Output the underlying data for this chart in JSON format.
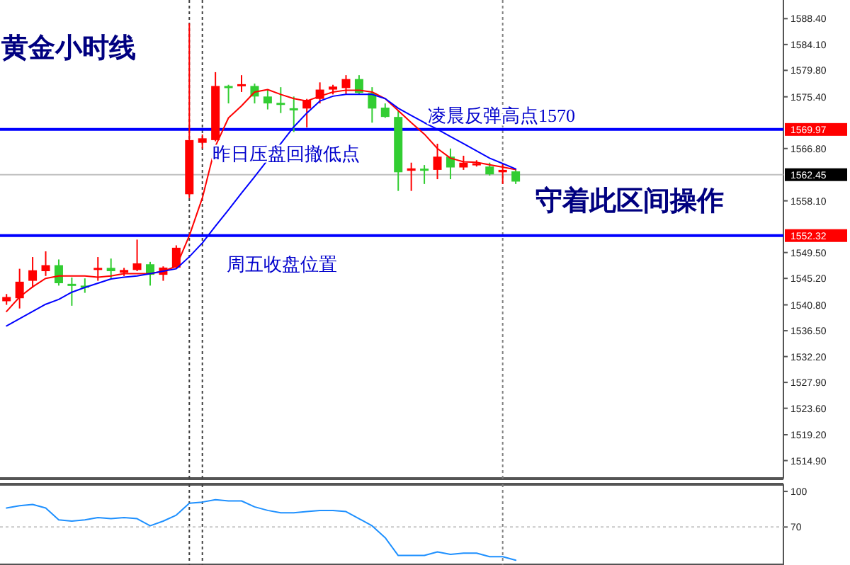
{
  "chart_data": [
    {
      "type": "candlestick",
      "title": "黄金小时线",
      "annotations": [
        "凌晨反弹高点1570",
        "昨日压盘回撤低点",
        "守着此区间操作",
        "周五收盘位置"
      ],
      "categories": [
        null,
        null,
        null,
        null,
        null,
        null,
        null,
        null,
        null,
        null,
        null,
        null,
        null,
        null,
        null,
        null,
        null,
        null,
        null,
        null,
        null,
        null,
        null,
        null,
        null,
        null,
        null,
        null,
        null,
        null,
        null,
        null,
        null,
        null,
        null,
        null,
        null,
        null,
        null,
        null,
        null,
        null,
        null,
        null,
        null,
        null,
        null,
        null,
        null,
        null,
        null,
        null,
        null,
        null,
        null,
        null,
        null,
        null,
        null,
        null
      ],
      "ohlc": [
        [
          1541.4,
          1542.6,
          1540.8,
          1542.1
        ],
        [
          1541.9,
          1546.8,
          1540.2,
          1544.65
        ],
        [
          1544.8,
          1548.75,
          1543.65,
          1546.55
        ],
        [
          1546.4,
          1549.7,
          1545.6,
          1547.4
        ],
        [
          1547.4,
          1548.35,
          1544.0,
          1544.4
        ],
        [
          1544.3,
          1545.35,
          1540.65,
          1544.2
        ],
        [
          1544.0,
          1545.2,
          1542.8,
          1543.9
        ],
        [
          1546.6,
          1548.75,
          1544.8,
          1546.95
        ],
        [
          1546.95,
          1548.5,
          1545.2,
          1546.4
        ],
        [
          1546.15,
          1546.95,
          1545.6,
          1546.6
        ],
        [
          1546.6,
          1551.65,
          1546.4,
          1547.7
        ],
        [
          1547.55,
          1547.95,
          1544.0,
          1545.8
        ],
        [
          1545.8,
          1547.2,
          1544.8,
          1547.0
        ],
        [
          1547.0,
          1550.7,
          1546.8,
          1550.3
        ],
        [
          1559.2,
          1587.6,
          1558.55,
          1568.2
        ],
        [
          1567.75,
          1569.15,
          1566.8,
          1568.5
        ],
        [
          1568.2,
          1579.5,
          1568.0,
          1577.2
        ],
        [
          1577.2,
          1577.4,
          1574.3,
          1577.0
        ],
        [
          1577.2,
          1579.0,
          1576.2,
          1577.5
        ],
        [
          1577.2,
          1577.6,
          1574.3,
          1575.45
        ],
        [
          1575.45,
          1576.6,
          1573.3,
          1574.3
        ],
        [
          1574.4,
          1577.0,
          1572.7,
          1574.1
        ],
        [
          1573.5,
          1575.45,
          1569.55,
          1573.3
        ],
        [
          1573.45,
          1575.05,
          1570.3,
          1574.9
        ],
        [
          1575.05,
          1577.8,
          1574.3,
          1576.6
        ],
        [
          1576.6,
          1577.4,
          1575.8,
          1577.1
        ],
        [
          1576.85,
          1579.0,
          1575.8,
          1578.35
        ],
        [
          1578.35,
          1579.0,
          1575.8,
          1576.05
        ],
        [
          1576.05,
          1577.0,
          1571.1,
          1573.45
        ],
        [
          1573.6,
          1574.3,
          1571.9,
          1572.05
        ],
        [
          1572.05,
          1573.1,
          1559.75,
          1562.85
        ],
        [
          1563.1,
          1564.45,
          1559.75,
          1563.5
        ],
        [
          1563.45,
          1564.05,
          1560.9,
          1563.35
        ],
        [
          1563.25,
          1567.6,
          1561.7,
          1565.45
        ],
        [
          1565.45,
          1566.8,
          1561.7,
          1563.65
        ],
        [
          1563.65,
          1565.6,
          1563.25,
          1564.45
        ],
        [
          1564.2,
          1564.85,
          1563.8,
          1564.35
        ],
        [
          1563.8,
          1564.45,
          1562.3,
          1562.5
        ],
        [
          1562.85,
          1564.2,
          1560.9,
          1563.25
        ],
        [
          1563.0,
          1563.25,
          1560.9,
          1561.3
        ],
        null,
        null,
        null,
        null,
        null,
        null,
        null,
        null,
        null,
        null,
        null,
        null,
        null,
        null,
        null,
        null,
        null,
        null,
        null,
        null
      ],
      "colors": [
        "#ff0000",
        "#ff0000",
        "#ff0000",
        "#ff0000",
        "#32cd32",
        "#32cd32",
        "#32cd32",
        "#ff0000",
        "#32cd32",
        "#ff0000",
        "#ff0000",
        "#32cd32",
        "#ff0000",
        "#ff0000",
        "#ff0000",
        "#ff0000",
        "#ff0000",
        "#32cd32",
        "#ff0000",
        "#32cd32",
        "#32cd32",
        "#32cd32",
        "#32cd32",
        "#ff0000",
        "#ff0000",
        "#ff0000",
        "#ff0000",
        "#32cd32",
        "#32cd32",
        "#32cd32",
        "#32cd32",
        "#ff0000",
        "#32cd32",
        "#ff0000",
        "#32cd32",
        "#ff0000",
        "#ff0000",
        "#32cd32",
        "#ff0000",
        "#32cd32",
        null,
        null,
        null,
        null,
        null,
        null,
        null,
        null,
        null,
        null,
        null,
        null,
        null,
        null,
        null,
        null,
        null,
        null,
        null,
        null
      ],
      "ylim": [
        1511.9,
        1591.5
      ],
      "yticks": [
        {
          "value": 1588.4,
          "label": "1588.40"
        },
        {
          "value": 1584.1,
          "label": "1584.10"
        },
        {
          "value": 1579.8,
          "label": "1579.80"
        },
        {
          "value": 1575.4,
          "label": "1575.40"
        },
        {
          "value": 1566.8,
          "label": "1566.80"
        },
        {
          "value": 1558.1,
          "label": "1558.10"
        },
        {
          "value": 1549.5,
          "label": "1549.50"
        },
        {
          "value": 1545.2,
          "label": "1545.20"
        },
        {
          "value": 1540.8,
          "label": "1540.80"
        },
        {
          "value": 1536.5,
          "label": "1536.50"
        },
        {
          "value": 1532.2,
          "label": "1532.20"
        },
        {
          "value": 1527.9,
          "label": "1527.90"
        },
        {
          "value": 1523.6,
          "label": "1523.60"
        },
        {
          "value": 1519.2,
          "label": "1519.20"
        },
        {
          "value": 1514.9,
          "label": "1514.90"
        }
      ],
      "tick_labels": "y",
      "ref_lines": [
        {
          "axis": "y",
          "value": 1562.45,
          "label": "1562.45",
          "color": "#c0c0c0",
          "line_style": "solid"
        },
        {
          "axis": "y",
          "value": 1569.97,
          "label": "1569.97",
          "color": "#0000ff",
          "line_style": "solid"
        },
        {
          "axis": "y",
          "value": 1552.32,
          "label": "1552.32",
          "color": "#0000ff",
          "line_style": "solid"
        }
      ]
    },
    {
      "type": "line",
      "categories": [
        null,
        null,
        null,
        null,
        null,
        null,
        null,
        null,
        null,
        null,
        null,
        null,
        null,
        null,
        null,
        null,
        null,
        null,
        null,
        null,
        null,
        null,
        null,
        null,
        null,
        null,
        null,
        null,
        null,
        null,
        null,
        null,
        null,
        null,
        null,
        null,
        null,
        null,
        null,
        null,
        null,
        null,
        null,
        null,
        null,
        null,
        null,
        null,
        null,
        null,
        null,
        null,
        null,
        null,
        null,
        null,
        null,
        null,
        null,
        null
      ],
      "series": [
        {
          "color": "#ff0000",
          "values": [
            1539.7,
            1542.1,
            1543.8,
            1545.2,
            1545.6,
            1545.6,
            1545.6,
            1545.4,
            1545.6,
            1546.0,
            1546.0,
            1546.0,
            1546.4,
            1547.2,
            1552.3,
            1558.6,
            1567.2,
            1571.9,
            1573.9,
            1576.2,
            1576.6,
            1575.8,
            1575.1,
            1574.7,
            1575.5,
            1576.2,
            1576.5,
            1576.5,
            1576.2,
            1575.1,
            1573.1,
            1571.1,
            1569.2,
            1566.8,
            1565.2,
            1564.6,
            1564.5,
            1564.1,
            1563.7,
            1563.3,
            null,
            null,
            null,
            null,
            null,
            null,
            null,
            null,
            null,
            null,
            null,
            null,
            null,
            null,
            null,
            null,
            null,
            null,
            null,
            null
          ]
        }
      ],
      "ylim": [
        1511.9,
        1591.5
      ],
      "tick_labels": false
    },
    {
      "type": "line",
      "categories": [
        null,
        null,
        null,
        null,
        null,
        null,
        null,
        null,
        null,
        null,
        null,
        null,
        null,
        null,
        null,
        null,
        null,
        null,
        null,
        null,
        null,
        null,
        null,
        null,
        null,
        null,
        null,
        null,
        null,
        null,
        null,
        null,
        null,
        null,
        null,
        null,
        null,
        null,
        null,
        null,
        null,
        null,
        null,
        null,
        null,
        null,
        null,
        null,
        null,
        null,
        null,
        null,
        null,
        null,
        null,
        null,
        null,
        null,
        null,
        null
      ],
      "series": [
        {
          "color": "#0000ff",
          "values": [
            1537.3,
            1538.5,
            1539.7,
            1540.9,
            1541.7,
            1542.9,
            1543.7,
            1544.4,
            1545.1,
            1545.4,
            1545.6,
            1546.0,
            1546.4,
            1546.8,
            1548.8,
            1551.1,
            1553.9,
            1556.6,
            1559.4,
            1562.1,
            1564.9,
            1567.6,
            1570.4,
            1572.7,
            1574.7,
            1575.5,
            1575.8,
            1575.8,
            1575.8,
            1575.1,
            1573.5,
            1572.3,
            1571.1,
            1570.0,
            1568.8,
            1567.6,
            1566.4,
            1565.2,
            1564.3,
            1563.4,
            null,
            null,
            null,
            null,
            null,
            null,
            null,
            null,
            null,
            null,
            null,
            null,
            null,
            null,
            null,
            null,
            null,
            null,
            null,
            null
          ]
        }
      ],
      "ylim": [
        1511.9,
        1591.5
      ],
      "tick_labels": false
    },
    {
      "type": "line",
      "categories": [
        null,
        null,
        null,
        null,
        null,
        null,
        null,
        null,
        null,
        null,
        null,
        null,
        null,
        null,
        null,
        null,
        null,
        null,
        null,
        null,
        null,
        null,
        null,
        null,
        null,
        null,
        null,
        null,
        null,
        null,
        null,
        null,
        null,
        null,
        null,
        null,
        null,
        null,
        null,
        null,
        null,
        null,
        null,
        null,
        null,
        null,
        null,
        null,
        null,
        null,
        null,
        null,
        null,
        null,
        null,
        null,
        null,
        null,
        null,
        null
      ],
      "ylim": [
        38,
        106
      ],
      "yticks": [
        100,
        70
      ],
      "tick_labels": "y",
      "series": [
        {
          "color": "#1e90ff",
          "values": [
            86,
            88,
            89,
            86,
            76,
            75,
            76,
            78,
            77,
            78,
            77,
            71,
            75,
            80,
            90,
            91,
            93,
            92,
            92,
            87,
            84,
            82,
            82,
            83,
            84,
            84,
            83,
            77,
            71,
            61,
            46,
            46,
            46,
            49,
            47,
            48,
            48,
            45,
            45,
            42,
            null,
            null,
            null,
            null,
            null,
            null,
            null,
            null,
            null,
            null,
            null,
            null,
            null,
            null,
            null,
            null,
            null,
            null,
            null,
            null
          ]
        }
      ],
      "ref_lines": [
        {
          "axis": "y",
          "value": 70,
          "color": "#c8c8c8",
          "line_style": "dotted"
        }
      ]
    }
  ]
}
